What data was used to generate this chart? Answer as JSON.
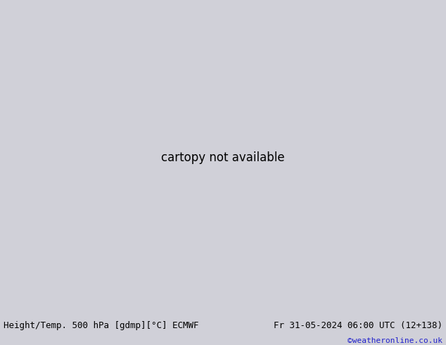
{
  "title_left": "Height/Temp. 500 hPa [gdmp][°C] ECMWF",
  "title_right": "Fr 31-05-2024 06:00 UTC (12+138)",
  "credit": "©weatheronline.co.uk",
  "bg_map": "#d0d0d8",
  "land_green": "#b0d890",
  "land_gray": "#c0c0c0",
  "ocean": "#d8d8e0",
  "c_black": "#000000",
  "c_orange": "#e08000",
  "c_red": "#e00000",
  "c_magenta": "#e000b0",
  "c_green_label": "#40a000",
  "text_left": "#000000",
  "text_right": "#000000",
  "text_credit": "#2222cc",
  "fs_title": 9,
  "fs_credit": 8,
  "fs_label": 7,
  "fig_w": 6.34,
  "fig_h": 4.9,
  "dpi": 100,
  "extent": [
    60,
    180,
    -15,
    65
  ]
}
